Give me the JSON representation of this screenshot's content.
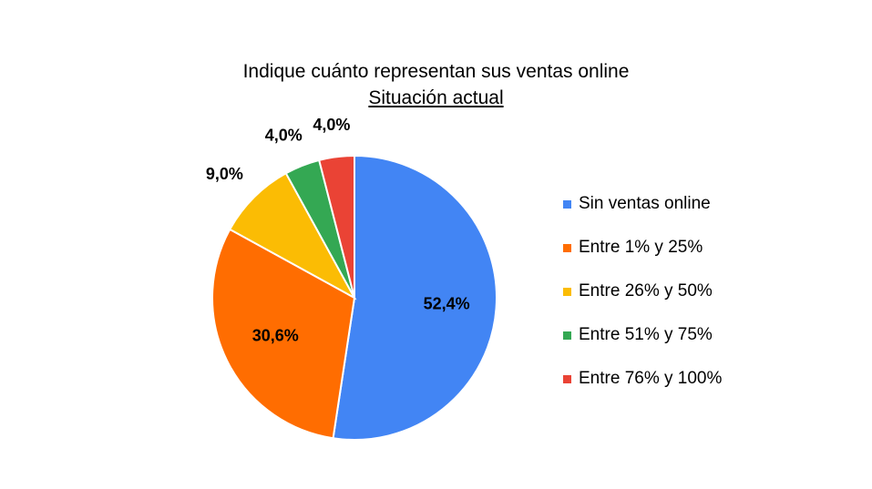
{
  "chart_data": {
    "type": "pie",
    "title": "Indique cuánto representan sus ventas online",
    "subtitle": "Situación actual",
    "categories": [
      "Sin ventas online",
      "Entre 1% y 25%",
      "Entre 26% y 50%",
      "Entre 51% y 75%",
      "Entre 76% y 100%"
    ],
    "values": [
      52.4,
      30.6,
      9.0,
      4.0,
      4.0
    ],
    "data_labels": [
      "52,4%",
      "30,6%",
      "9,0%",
      "4,0%",
      "4,0%"
    ],
    "colors": [
      "#4285F4",
      "#FF6D01",
      "#FBBC04",
      "#34A853",
      "#EA4335"
    ],
    "legend_position": "right"
  }
}
